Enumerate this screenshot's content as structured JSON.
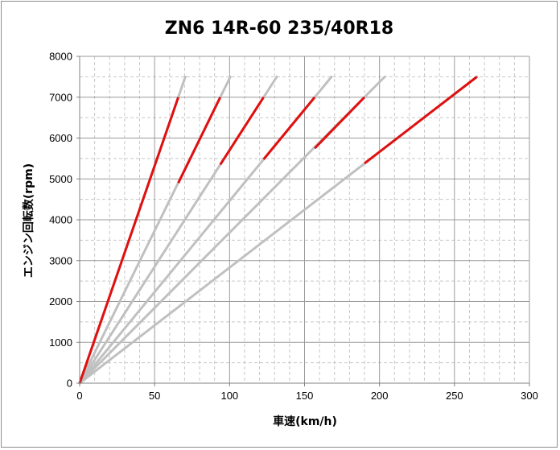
{
  "chart_data": {
    "type": "line",
    "title": "ZN6 14R-60 235/40R18",
    "xlabel": "車速(km/h)",
    "ylabel": "エンジン回転数(rpm)",
    "xlim": [
      0,
      300
    ],
    "ylim": [
      0,
      8000
    ],
    "x_ticks": [
      "0",
      "50",
      "100",
      "150",
      "200",
      "250",
      "300"
    ],
    "y_ticks": [
      "0",
      "1000",
      "2000",
      "3000",
      "4000",
      "5000",
      "6000",
      "7000",
      "8000"
    ],
    "grid": {
      "major_x_step": 50,
      "minor_x_step": 10,
      "major_y_step": 1000,
      "minor_y_step": 500
    },
    "colors": {
      "gear_line": "#c0c0c0",
      "shift_band": "#e01010",
      "grid_major": "#9a9a9a",
      "grid_minor": "#c8c8c8"
    },
    "series": [
      {
        "line": {
          "x": [
            0,
            70.5
          ],
          "y": [
            0,
            7500
          ]
        },
        "highlight": {
          "x": [
            0,
            65.8
          ],
          "y": [
            0,
            7000
          ]
        }
      },
      {
        "line": {
          "x": [
            0,
            100.5
          ],
          "y": [
            0,
            7500
          ]
        },
        "highlight": {
          "x": [
            65.8,
            93.8
          ],
          "y": [
            4900,
            7000
          ]
        }
      },
      {
        "line": {
          "x": [
            0,
            131.5
          ],
          "y": [
            0,
            7500
          ]
        },
        "highlight": {
          "x": [
            93.8,
            122.7
          ],
          "y": [
            5350,
            7000
          ]
        }
      },
      {
        "line": {
          "x": [
            0,
            168
          ],
          "y": [
            0,
            7500
          ]
        },
        "highlight": {
          "x": [
            122.7,
            156.8
          ],
          "y": [
            5480,
            7000
          ]
        }
      },
      {
        "line": {
          "x": [
            0,
            203.5
          ],
          "y": [
            0,
            7500
          ]
        },
        "highlight": {
          "x": [
            156.8,
            190
          ],
          "y": [
            5750,
            7000
          ]
        }
      },
      {
        "line": {
          "x": [
            0,
            265
          ],
          "y": [
            0,
            7500
          ]
        },
        "highlight": {
          "x": [
            190,
            265
          ],
          "y": [
            5380,
            7500
          ]
        }
      }
    ]
  }
}
